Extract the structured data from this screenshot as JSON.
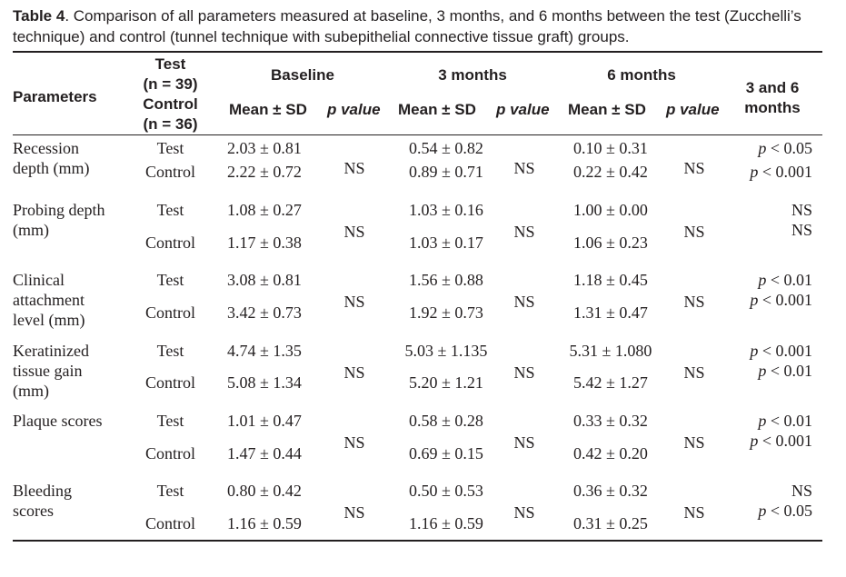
{
  "caption": {
    "label": "Table 4",
    "text": ". Comparison of all parameters measured at baseline, 3 months, and 6 months between the test (Zucchelli’s technique) and control (tunnel technique with subepithelial connective tissue graft) groups."
  },
  "header": {
    "parameters": "Parameters",
    "test": "Test",
    "test_n": "(n = 39)",
    "control": "Control",
    "control_n": "(n = 36)",
    "baseline": "Baseline",
    "three_months": "3 months",
    "six_months": "6 months",
    "mean_sd": "Mean ± SD",
    "p_value": "p value",
    "three_and_six_line1": "3 and 6",
    "three_and_six_line2": "months"
  },
  "rows": [
    {
      "param": [
        "Recession",
        "depth (mm)"
      ],
      "test_label": "Test",
      "control_label": "Control",
      "base_test": "2.03 ± 0.81",
      "base_ctrl": "2.22 ± 0.72",
      "base_p": "NS",
      "m3_test": "0.54 ± 0.82",
      "m3_ctrl": "0.89 ± 0.71",
      "m3_p": "NS",
      "m6_test": "0.10 ± 0.31",
      "m6_ctrl": "0.22 ± 0.42",
      "m6_p": "NS",
      "p36_test": "p < 0.05",
      "p36_ctrl": "p < 0.001"
    },
    {
      "param": [
        "Probing depth",
        "(mm)"
      ],
      "test_label": "Test",
      "control_label": "Control",
      "base_test": "1.08 ± 0.27",
      "base_ctrl": "1.17 ± 0.38",
      "base_p": "NS",
      "m3_test": "1.03 ± 0.16",
      "m3_ctrl": "1.03 ± 0.17",
      "m3_p": "NS",
      "m6_test": "1.00 ± 0.00",
      "m6_ctrl": "1.06 ± 0.23",
      "m6_p": "NS",
      "p36_test": "NS",
      "p36_ctrl": "NS"
    },
    {
      "param": [
        "Clinical",
        "attachment",
        "level (mm)"
      ],
      "test_label": "Test",
      "control_label": "Control",
      "base_test": "3.08 ± 0.81",
      "base_ctrl": "3.42 ± 0.73",
      "base_p": "NS",
      "m3_test": "1.56 ± 0.88",
      "m3_ctrl": "1.92 ± 0.73",
      "m3_p": "NS",
      "m6_test": "1.18 ± 0.45",
      "m6_ctrl": "1.31 ± 0.47",
      "m6_p": "NS",
      "p36_test": "p < 0.01",
      "p36_ctrl": "p < 0.001"
    },
    {
      "param": [
        "Keratinized",
        "tissue gain",
        "(mm)"
      ],
      "test_label": "Test",
      "control_label": "Control",
      "base_test": "4.74 ± 1.35",
      "base_ctrl": "5.08 ± 1.34",
      "base_p": "NS",
      "m3_test": "5.03 ± 1.135",
      "m3_ctrl": "5.20 ± 1.21",
      "m3_p": "NS",
      "m6_test": "5.31 ± 1.080",
      "m6_ctrl": "5.42 ± 1.27",
      "m6_p": "NS",
      "p36_test": "p < 0.001",
      "p36_ctrl": "p < 0.01"
    },
    {
      "param": [
        "Plaque scores"
      ],
      "test_label": "Test",
      "control_label": "Control",
      "base_test": "1.01 ± 0.47",
      "base_ctrl": "1.47 ± 0.44",
      "base_p": "NS",
      "m3_test": "0.58 ± 0.28",
      "m3_ctrl": "0.69 ± 0.15",
      "m3_p": "NS",
      "m6_test": "0.33 ± 0.32",
      "m6_ctrl": "0.42 ± 0.20",
      "m6_p": "NS",
      "p36_test": "p < 0.01",
      "p36_ctrl": "p < 0.001"
    },
    {
      "param": [
        "Bleeding",
        "scores"
      ],
      "test_label": "Test",
      "control_label": "Control",
      "base_test": "0.80 ± 0.42",
      "base_ctrl": "1.16 ± 0.59",
      "base_p": "NS",
      "m3_test": "0.50 ± 0.53",
      "m3_ctrl": "1.16 ± 0.59",
      "m3_p": "NS",
      "m6_test": "0.36 ± 0.32",
      "m6_ctrl": "0.31 ± 0.25",
      "m6_p": "NS",
      "p36_test": "NS",
      "p36_ctrl": "p < 0.05"
    }
  ]
}
